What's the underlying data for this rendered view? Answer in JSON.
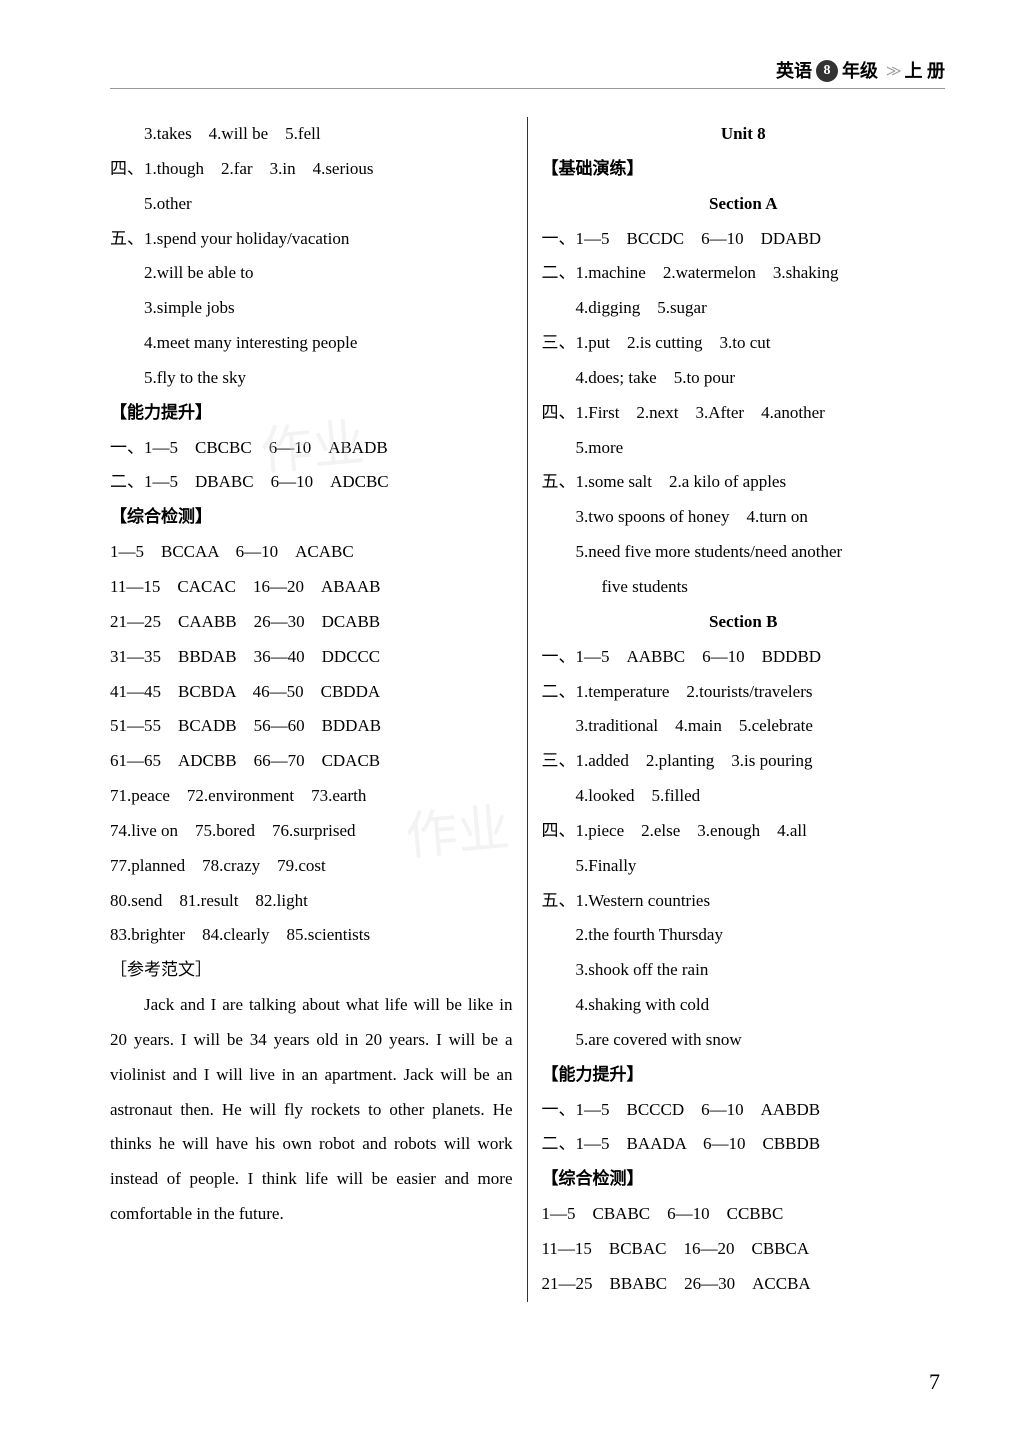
{
  "header": {
    "subject": "英语",
    "grade_num": "8",
    "grade_suffix": "年级",
    "volume": "上 册"
  },
  "left": {
    "l1": "3.takes　4.will be　5.fell",
    "l2": "四、1.though　2.far　3.in　4.serious",
    "l3": "5.other",
    "l4": "五、1.spend your holiday/vacation",
    "l5": "2.will be able to",
    "l6": "3.simple jobs",
    "l7": "4.meet many interesting people",
    "l8": "5.fly to the sky",
    "h1": "【能力提升】",
    "l9": "一、1—5　CBCBC　6—10　ABADB",
    "l10": "二、1—5　DBABC　6—10　ADCBC",
    "h2": "【综合检测】",
    "l11": "1—5　BCCAA　6—10　ACABC",
    "l12": "11—15　CACAC　16—20　ABAAB",
    "l13": "21—25　CAABB　26—30　DCABB",
    "l14": "31—35　BBDAB　36—40　DDCCC",
    "l15": "41—45　BCBDA　46—50　CBDDA",
    "l16": "51—55　BCADB　56—60　BDDAB",
    "l17": "61—65　ADCBB　66—70　CDACB",
    "l18": "71.peace　72.environment　73.earth",
    "l19": "74.live on　75.bored　76.surprised",
    "l20": "77.planned　78.crazy　79.cost",
    "l21": "80.send　81.result　82.light",
    "l22": "83.brighter　84.clearly　85.scientists",
    "l23": "［参考范文］",
    "para": "Jack and I are talking about what life will be like in 20 years. I will be 34 years old in 20 years. I will be a violinist and I will live in an apartment. Jack will be an astronaut then. He will fly rockets to other planets. He thinks he will have his own robot and robots will work instead of people. I think life will be easier and more comfortable in the future."
  },
  "right": {
    "u": "Unit 8",
    "h1": "【基础演练】",
    "sa": "Section A",
    "r1": "一、1—5　BCCDC　6—10　DDABD",
    "r2": "二、1.machine　2.watermelon　3.shaking",
    "r3": "4.digging　5.sugar",
    "r4": "三、1.put　2.is cutting　3.to cut",
    "r5": "4.does; take　5.to pour",
    "r6": "四、1.First　2.next　3.After　4.another",
    "r7": "5.more",
    "r8": "五、1.some salt　2.a kilo of apples",
    "r9": "3.two spoons of honey　4.turn on",
    "r10": "5.need five more students/need another",
    "r11": "five students",
    "sb": "Section B",
    "r12": "一、1—5　AABBC　6—10　BDDBD",
    "r13": "二、1.temperature　2.tourists/travelers",
    "r14": "3.traditional　4.main　5.celebrate",
    "r15": "三、1.added　2.planting　3.is pouring",
    "r16": "4.looked　5.filled",
    "r17": "四、1.piece　2.else　3.enough　4.all",
    "r18": "5.Finally",
    "r19": "五、1.Western countries",
    "r20": "2.the fourth Thursday",
    "r21": "3.shook off the rain",
    "r22": "4.shaking with cold",
    "r23": "5.are covered with snow",
    "h2": "【能力提升】",
    "r24": "一、1—5　BCCCD　6—10　AABDB",
    "r25": "二、1—5　BAADA　6—10　CBBDB",
    "h3": "【综合检测】",
    "r26": "1—5　CBABC　6—10　CCBBC",
    "r27": "11—15　BCBAC　16—20　CBBCA",
    "r28": "21—25　BBABC　26—30　ACCBA"
  },
  "pagenum": "7"
}
